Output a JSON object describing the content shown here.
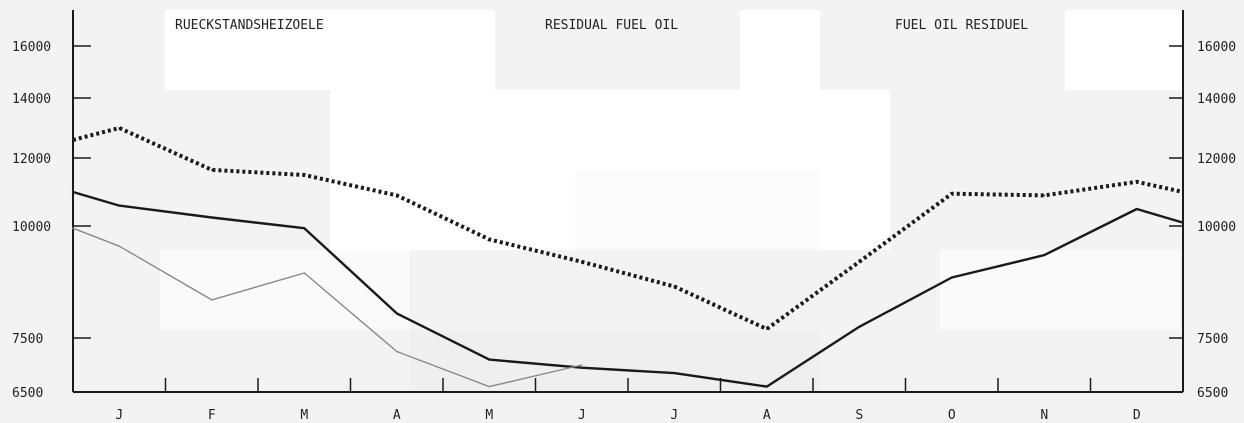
{
  "titles": {
    "german": "RUECKSTANDSHEIZOELE",
    "english": "RESIDUAL FUEL OIL",
    "french": "FUEL OIL RESIDUEL"
  },
  "chart_data": {
    "type": "line",
    "categories": [
      "J",
      "F",
      "M",
      "A",
      "M",
      "J",
      "J",
      "A",
      "S",
      "O",
      "N",
      "D"
    ],
    "y_ticks": [
      6500,
      7500,
      10000,
      12000,
      14000,
      16000
    ],
    "grid": false,
    "series": [
      {
        "style": "dotted-thick",
        "color": "#1a1a1a",
        "points": [
          {
            "x": 0.0,
            "y": 12600
          },
          {
            "x": 0.5,
            "y": 13000
          },
          {
            "x": 1.5,
            "y": 11650
          },
          {
            "x": 2.5,
            "y": 11500
          },
          {
            "x": 3.5,
            "y": 10900
          },
          {
            "x": 4.5,
            "y": 9700
          },
          {
            "x": 5.5,
            "y": 9200
          },
          {
            "x": 6.5,
            "y": 8650
          },
          {
            "x": 7.5,
            "y": 7700
          },
          {
            "x": 8.5,
            "y": 9200
          },
          {
            "x": 9.5,
            "y": 10950
          },
          {
            "x": 10.5,
            "y": 10900
          },
          {
            "x": 11.5,
            "y": 11300
          },
          {
            "x": 12.0,
            "y": 11000
          }
        ]
      },
      {
        "style": "solid-thick",
        "color": "#1a1a1a",
        "points": [
          {
            "x": 0.0,
            "y": 11000
          },
          {
            "x": 0.5,
            "y": 10600
          },
          {
            "x": 1.5,
            "y": 10250
          },
          {
            "x": 2.5,
            "y": 9950
          },
          {
            "x": 3.5,
            "y": 8050
          },
          {
            "x": 4.5,
            "y": 7100
          },
          {
            "x": 5.5,
            "y": 6950
          },
          {
            "x": 6.5,
            "y": 6850
          },
          {
            "x": 7.5,
            "y": 6600
          },
          {
            "x": 8.5,
            "y": 7750
          },
          {
            "x": 9.5,
            "y": 8850
          },
          {
            "x": 10.5,
            "y": 9350
          },
          {
            "x": 11.5,
            "y": 10500
          },
          {
            "x": 12.0,
            "y": 10100
          }
        ]
      },
      {
        "style": "solid-thin",
        "color": "#8a8a8a",
        "points": [
          {
            "x": 0.0,
            "y": 9950
          },
          {
            "x": 0.5,
            "y": 9550
          },
          {
            "x": 1.5,
            "y": 8350
          },
          {
            "x": 2.5,
            "y": 8950
          },
          {
            "x": 3.5,
            "y": 7250
          },
          {
            "x": 4.5,
            "y": 6600
          },
          {
            "x": 5.5,
            "y": 7000
          }
        ]
      }
    ]
  }
}
